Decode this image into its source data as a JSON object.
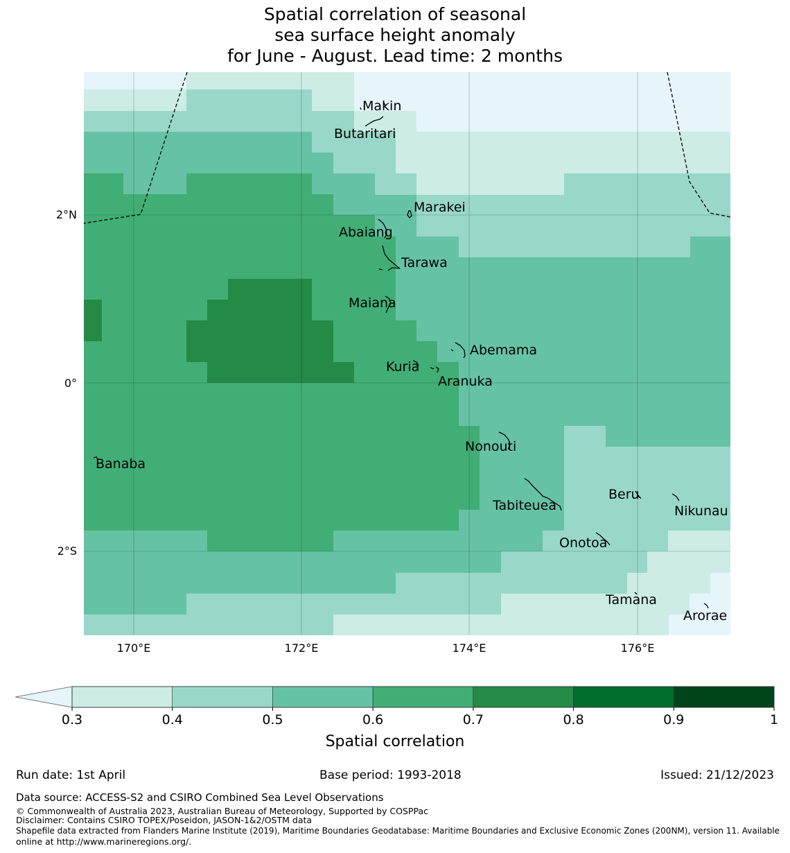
{
  "title": {
    "line1": "Spatial correlation of seasonal",
    "line2": "sea surface height anomaly",
    "line3": "for June - August. Lead time: 2 months"
  },
  "map": {
    "lat_ticks": [
      "2°N",
      "0°",
      "2°S"
    ],
    "lon_ticks": [
      "170°E",
      "172°E",
      "174°E",
      "176°E"
    ],
    "islands": [
      "Makin",
      "Butaritari",
      "Marakei",
      "Abaiang",
      "Tarawa",
      "Maiana",
      "Abemama",
      "Kuria",
      "Aranuka",
      "Nonouti",
      "Banaba",
      "Tabiteuea",
      "Beru",
      "Nikunau",
      "Onotoa",
      "Tamana",
      "Arorae"
    ]
  },
  "colorbar": {
    "label": "Spatial correlation",
    "ticks": [
      "0.3",
      "0.4",
      "0.5",
      "0.6",
      "0.7",
      "0.8",
      "0.9",
      "1"
    ],
    "colors": [
      "#ccece5",
      "#99d8c9",
      "#66c2a4",
      "#41ae76",
      "#238b45",
      "#006d2c",
      "#00441b"
    ],
    "under_color": "#e5f5f9"
  },
  "footer": {
    "run_date": "Run date: 1st April",
    "base_period": "Base period: 1993-2018",
    "issued": "Issued: 21/12/2023",
    "data_source": "Data source: ACCESS-S2 and CSIRO Combined Sea Level Observations",
    "copyright": "© Commonwealth of Australia 2023, Australian Bureau of Meteorology, Supported by COSPPac",
    "disclaimer": "Disclaimer: Contains CSIRO TOPEX/Poseidon, JASON-1&2/OSTM data",
    "shapefile1": "Shapefile data extracted from Flanders Marine Institute (2019), Maritime Boundaries Geodatabase: Maritime Boundaries and Exclusive Economic Zones (200NM), version 11. Available",
    "shapefile2": "online at http://www.marineregions.org/."
  }
}
